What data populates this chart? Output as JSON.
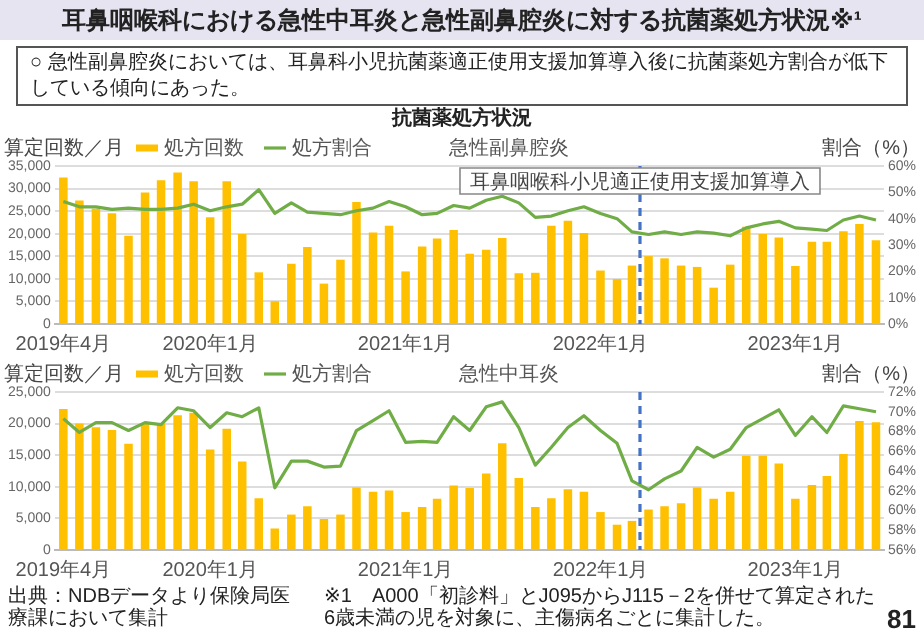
{
  "chart_data": [
    {
      "type": "bar",
      "title": "急性副鼻腔炎",
      "ylabel": "算定回数／月",
      "y2label": "割合（%）",
      "x": [
        "2019-04",
        "2019-05",
        "2019-06",
        "2019-07",
        "2019-08",
        "2019-09",
        "2019-10",
        "2019-11",
        "2019-12",
        "2020-01",
        "2020-02",
        "2020-03",
        "2020-04",
        "2020-05",
        "2020-06",
        "2020-07",
        "2020-08",
        "2020-09",
        "2020-10",
        "2020-11",
        "2020-12",
        "2021-01",
        "2021-02",
        "2021-03",
        "2021-04",
        "2021-05",
        "2021-06",
        "2021-07",
        "2021-08",
        "2021-09",
        "2021-10",
        "2021-11",
        "2021-12",
        "2022-01",
        "2022-02",
        "2022-03",
        "2022-04",
        "2022-05",
        "2022-06",
        "2022-07",
        "2022-08",
        "2022-09",
        "2022-10",
        "2022-11",
        "2022-12",
        "2023-01",
        "2023-02",
        "2023-03",
        "2023-04",
        "2023-05",
        "2023-06"
      ],
      "xlim": [
        "2019-03-16",
        "2023-06-16"
      ],
      "series": [
        {
          "name": "処方回数",
          "color": "#ffc000",
          "values": [
            32300,
            27200,
            25400,
            24400,
            19400,
            29000,
            31700,
            33400,
            31500,
            23500,
            31500,
            19800,
            11300,
            4900,
            13200,
            16900,
            8800,
            14100,
            26900,
            20100,
            21600,
            11500,
            17000,
            18800,
            20700,
            15400,
            16300,
            18900,
            11100,
            11200,
            21600,
            22700,
            20000,
            11700,
            9800,
            12800,
            14900,
            14400,
            12800,
            12500,
            7900,
            13000,
            21400,
            19800,
            19000,
            12700,
            18100,
            18100,
            20400,
            22000,
            18400
          ]
        },
        {
          "name": "処方割合",
          "type": "line",
          "axis": "y2",
          "color": "#70ad47",
          "values": [
            46.5,
            44.5,
            44.5,
            43.5,
            44,
            43.5,
            43.5,
            44,
            45.5,
            43,
            44.5,
            45.5,
            51,
            42,
            46,
            42.5,
            42,
            41.5,
            43,
            44,
            46.5,
            44.5,
            41.5,
            42,
            45,
            44,
            47,
            48.5,
            46,
            40.5,
            41,
            43,
            44.5,
            42,
            40,
            35,
            34,
            35,
            34,
            35,
            34.5,
            33.5,
            36.5,
            38,
            39,
            36.5,
            36,
            35.5,
            39.5,
            41,
            39.5
          ]
        }
      ],
      "ylim": [
        0,
        35000
      ],
      "yticks": [
        0,
        {
          "value": 5000,
          "label": "5,000"
        },
        {
          "value": 10000,
          "label": "10,000"
        },
        {
          "value": 15000,
          "label": "15,000"
        },
        {
          "value": 20000,
          "label": "20,000"
        },
        {
          "value": 25000,
          "label": "25,000"
        },
        {
          "value": 30000,
          "label": "30,000"
        },
        {
          "value": 35000,
          "label": "35,000"
        }
      ],
      "y2lim": [
        0,
        60
      ],
      "y2ticks": [
        {
          "value": 0,
          "label": "0%"
        },
        {
          "value": 10,
          "label": "10%"
        },
        {
          "value": 20,
          "label": "20%"
        },
        {
          "value": 30,
          "label": "30%"
        },
        {
          "value": 40,
          "label": "40%"
        },
        {
          "value": 50,
          "label": "50%"
        },
        {
          "value": 60,
          "label": "60%"
        }
      ],
      "xticks": [
        {
          "value": "2019-04",
          "label": "2019年4月"
        },
        {
          "value": "2020-01",
          "label": "2020年1月"
        },
        {
          "value": "2021-01",
          "label": "2021年1月"
        },
        {
          "value": "2022-01",
          "label": "2022年1月"
        },
        {
          "value": "2023-01",
          "label": "2023年1月"
        }
      ],
      "grid": "y",
      "legend": "top left",
      "ref_lines": [
        {
          "axis": "x",
          "value": "2022-03-16",
          "label": "耳鼻咽喉科小児適正使用支援加算導入",
          "color": "#4472c4",
          "line_style": "dashed"
        }
      ],
      "annotations": [
        "耳鼻咽喉科における急性中耳炎と急性副鼻腔炎に対する抗菌薬処方状況※¹",
        "○ 急性副鼻腔炎においては、耳鼻科小児抗菌薬適正使用支援加算導入後に抗菌薬処方割合が低下している傾向にあった。",
        "抗菌薬処方状況"
      ]
    },
    {
      "type": "bar",
      "title": "急性中耳炎",
      "ylabel": "算定回数／月",
      "y2label": "割合（%）",
      "x": [
        "2019-04",
        "2019-05",
        "2019-06",
        "2019-07",
        "2019-08",
        "2019-09",
        "2019-10",
        "2019-11",
        "2019-12",
        "2020-01",
        "2020-02",
        "2020-03",
        "2020-04",
        "2020-05",
        "2020-06",
        "2020-07",
        "2020-08",
        "2020-09",
        "2020-10",
        "2020-11",
        "2020-12",
        "2021-01",
        "2021-02",
        "2021-03",
        "2021-04",
        "2021-05",
        "2021-06",
        "2021-07",
        "2021-08",
        "2021-09",
        "2021-10",
        "2021-11",
        "2021-12",
        "2022-01",
        "2022-02",
        "2022-03",
        "2022-04",
        "2022-05",
        "2022-06",
        "2022-07",
        "2022-08",
        "2022-09",
        "2022-10",
        "2022-11",
        "2022-12",
        "2023-01",
        "2023-02",
        "2023-03",
        "2023-04",
        "2023-05",
        "2023-06"
      ],
      "xlim": [
        "2019-03-16",
        "2023-06-16"
      ],
      "series": [
        {
          "name": "処方回数",
          "color": "#ffc000",
          "values": [
            22200,
            19900,
            19300,
            18900,
            16700,
            19900,
            19900,
            21200,
            21600,
            15800,
            19100,
            13900,
            8100,
            3300,
            5500,
            6800,
            4800,
            5500,
            9800,
            9100,
            9300,
            5900,
            6700,
            8000,
            10100,
            9700,
            12000,
            16800,
            11300,
            6700,
            8100,
            9500,
            9100,
            5900,
            3900,
            4500,
            6300,
            6800,
            7300,
            9800,
            8000,
            9100,
            14800,
            14800,
            13600,
            8000,
            10200,
            11600,
            15100,
            20300,
            20100
          ]
        },
        {
          "name": "処方割合",
          "type": "line",
          "axis": "y2",
          "color": "#70ad47",
          "values": [
            69.3,
            67.9,
            68.9,
            68.9,
            68.1,
            68.9,
            68.7,
            70.4,
            70.1,
            68.4,
            69.9,
            69.5,
            70.4,
            62.3,
            65.0,
            65.0,
            64.4,
            64.5,
            68.1,
            69.1,
            70.1,
            66.9,
            67.0,
            66.9,
            69.5,
            68.1,
            70.5,
            71.0,
            68.4,
            64.6,
            66.4,
            68.4,
            69.6,
            68.1,
            66.8,
            63.0,
            62.1,
            63.2,
            64.0,
            66.4,
            65.4,
            66.2,
            68.4,
            69.3,
            70.2,
            67.6,
            69.5,
            67.9,
            70.6,
            70.3,
            70.0
          ]
        }
      ],
      "ylim": [
        0,
        25000
      ],
      "yticks": [
        0,
        {
          "value": 5000,
          "label": "5,000"
        },
        {
          "value": 10000,
          "label": "10,000"
        },
        {
          "value": 15000,
          "label": "15,000"
        },
        {
          "value": 20000,
          "label": "20,000"
        },
        {
          "value": 25000,
          "label": "25,000"
        }
      ],
      "y2lim": [
        56,
        72
      ],
      "y2ticks": [
        {
          "value": 56,
          "label": "56%"
        },
        {
          "value": 58,
          "label": "58%"
        },
        {
          "value": 60,
          "label": "60%"
        },
        {
          "value": 62,
          "label": "62%"
        },
        {
          "value": 64,
          "label": "64%"
        },
        {
          "value": 66,
          "label": "66%"
        },
        {
          "value": 68,
          "label": "68%"
        },
        {
          "value": 70,
          "label": "70%"
        },
        {
          "value": 72,
          "label": "72%"
        }
      ],
      "xticks": [
        {
          "value": "2019-04",
          "label": "2019年4月"
        },
        {
          "value": "2020-01",
          "label": "2020年1月"
        },
        {
          "value": "2021-01",
          "label": "2021年1月"
        },
        {
          "value": "2022-01",
          "label": "2022年1月"
        },
        {
          "value": "2023-01",
          "label": "2023年1月"
        }
      ],
      "grid": "y",
      "legend": "top left",
      "ref_lines": [
        {
          "axis": "x",
          "value": "2022-03-16",
          "color": "#4472c4",
          "line_style": "dashed"
        }
      ],
      "annotations": [
        "出典：NDBデータより保険局医療課において集計",
        "※1　A000「初診料」とJ095からJ115－2を併せて算定された6歳未満の児を対象に、主傷病名ごとに集計した。",
        "81"
      ]
    }
  ]
}
